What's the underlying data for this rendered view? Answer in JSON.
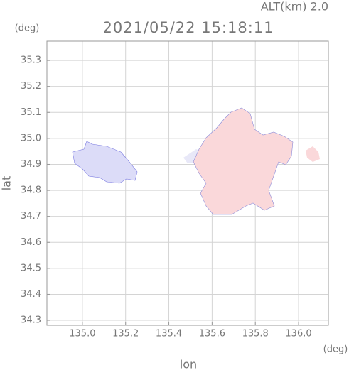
{
  "chart_data": {
    "type": "map",
    "title": "2021/05/22 15:18:11",
    "subtitle": "ALT(km)  2.0",
    "x_label": "lon",
    "y_label": "lat",
    "x_unit": "(deg)",
    "y_unit": "(deg)",
    "xlim": [
      134.836,
      136.138
    ],
    "ylim": [
      34.281,
      35.374
    ],
    "xticks": [
      {
        "value": 135.0,
        "label": "135.0"
      },
      135.2,
      135.4,
      135.6,
      135.8,
      {
        "value": 136.0,
        "label": "136.0"
      }
    ],
    "yticks": [
      34.3,
      34.4,
      34.5,
      34.6,
      34.7,
      34.8,
      34.9,
      {
        "value": 35.0,
        "label": "35.0"
      },
      35.1,
      35.2,
      35.3
    ],
    "grid": true,
    "grid_color": "#d4d4d4"
  }
}
